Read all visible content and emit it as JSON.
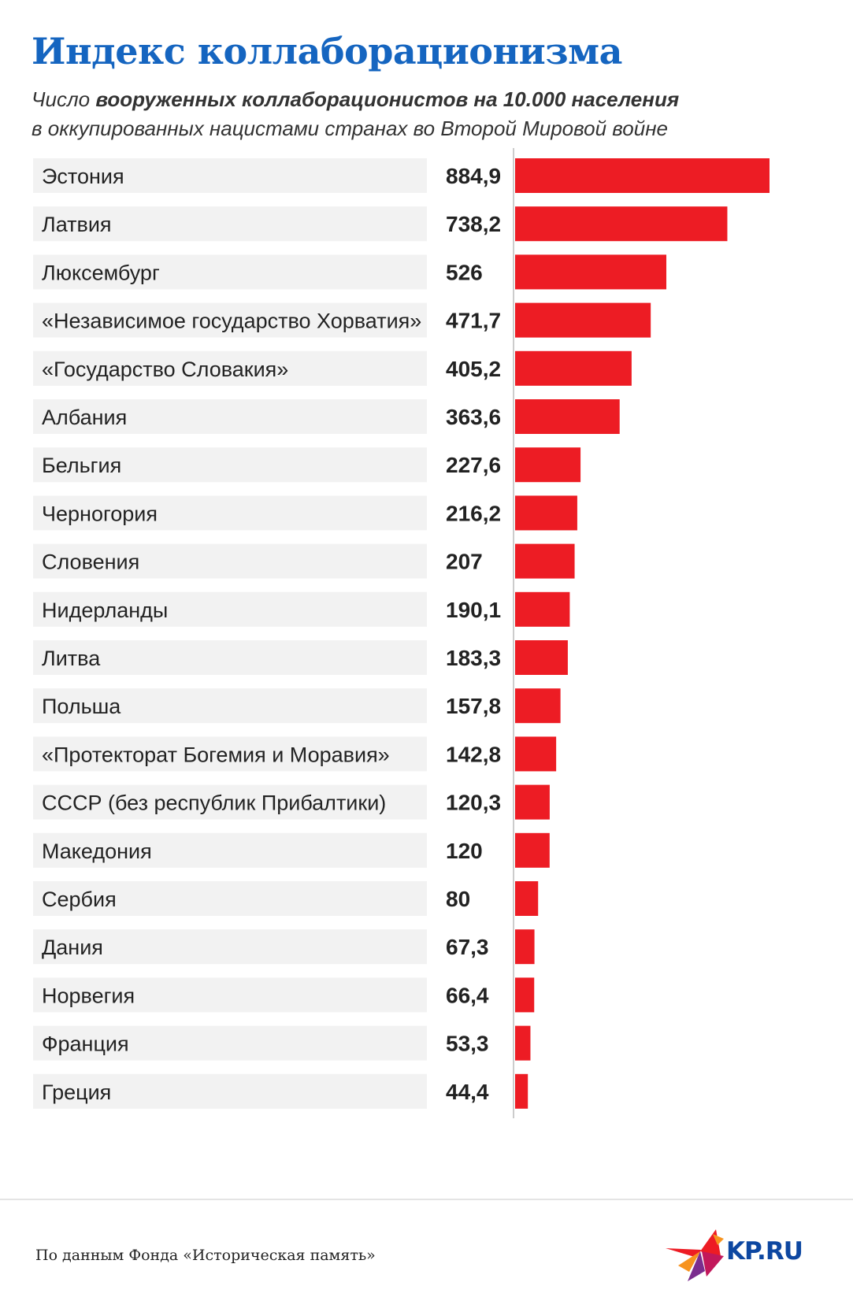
{
  "header": {
    "title": "Индекс коллаборационизма",
    "subtitle_prefix": "Число ",
    "subtitle_bold": "вооруженных коллаборационистов на 10.000 населения",
    "subtitle_line2": "в оккупированных нацистами странах во Второй Мировой войне"
  },
  "colors": {
    "title": "#1565c0",
    "bar": "#ed1c24",
    "row_background": "#f2f2f2",
    "axis": "#cccccc"
  },
  "chart_data": {
    "type": "bar",
    "orientation": "horizontal",
    "title": "Индекс коллаборационизма",
    "categories": [
      "Эстония",
      "Латвия",
      "Люксембург",
      "«Независимое государство Хорватия»",
      "«Государство Словакия»",
      "Албания",
      "Бельгия",
      "Черногория",
      "Словения",
      "Нидерланды",
      "Литва",
      "Польша",
      "«Протекторат Богемия и Моравия»",
      "СССР (без республик Прибалтики)",
      "Македония",
      "Сербия",
      "Дания",
      "Норвегия",
      "Франция",
      "Греция"
    ],
    "values": [
      884.9,
      738.2,
      526,
      471.7,
      405.2,
      363.6,
      227.6,
      216.2,
      207,
      190.1,
      183.3,
      157.8,
      142.8,
      120.3,
      120,
      80,
      67.3,
      66.4,
      53.3,
      44.4
    ],
    "value_labels": [
      "884,9",
      "738,2",
      "526",
      "471,7",
      "405,2",
      "363,6",
      "227,6",
      "216,2",
      "207",
      "190,1",
      "183,3",
      "157,8",
      "142,8",
      "120,3",
      "120",
      "80",
      "67,3",
      "66,4",
      "53,3",
      "44,4"
    ],
    "xlim": [
      0,
      884.9
    ],
    "grid": false,
    "legend": "none"
  },
  "footer": {
    "source": "По данным Фонда «Историческая память»",
    "logo_text": "KP.RU"
  }
}
